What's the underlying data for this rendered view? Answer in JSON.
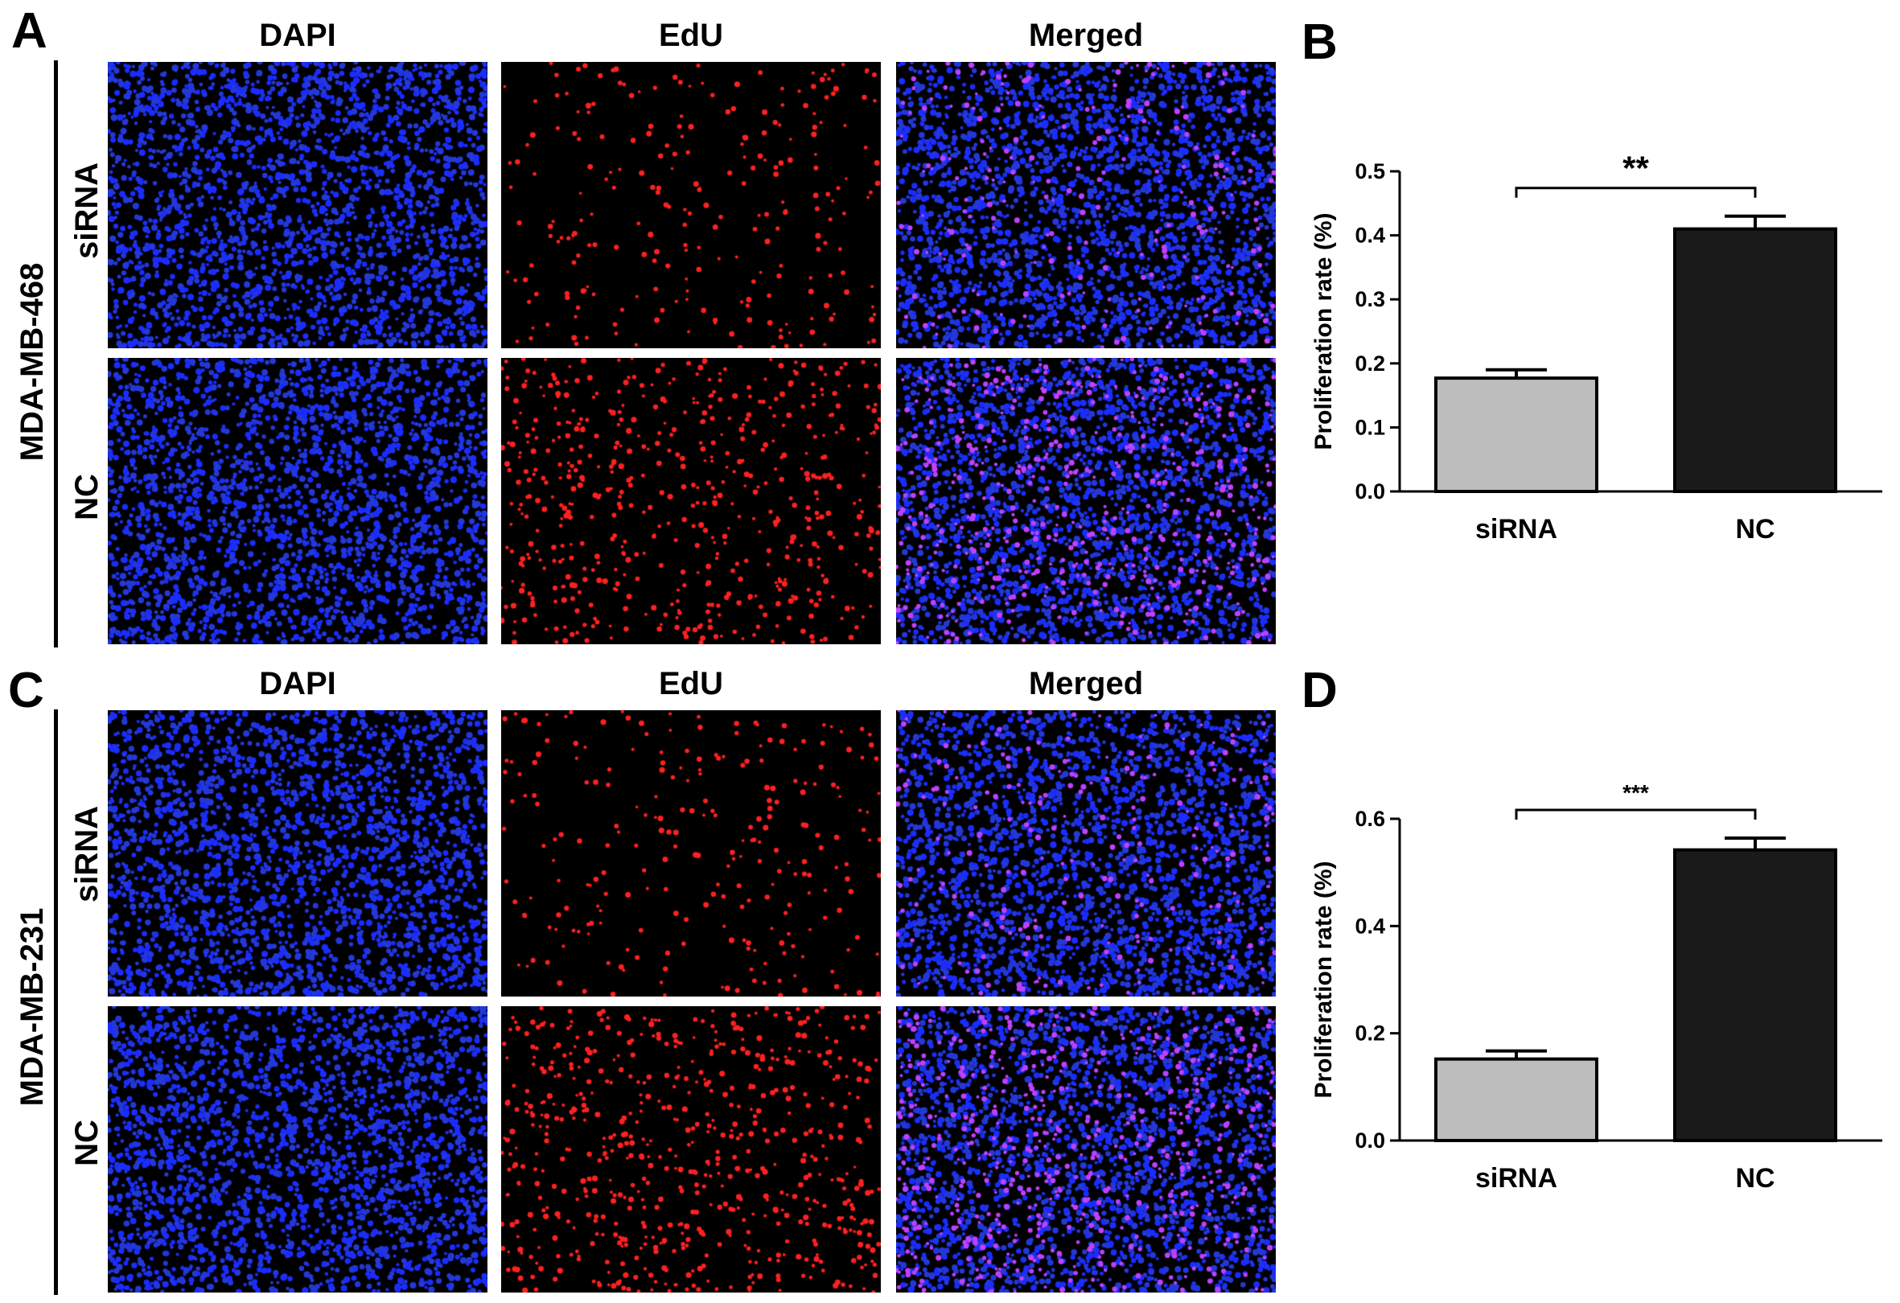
{
  "panels": [
    {
      "letter": "A",
      "cell_line": "MDA-MB-468",
      "columns": [
        "DAPI",
        "EdU",
        "Merged"
      ],
      "rows": [
        "siRNA",
        "NC"
      ]
    },
    {
      "letter": "C",
      "cell_line": "MDA-MB-231",
      "columns": [
        "DAPI",
        "EdU",
        "Merged"
      ],
      "rows": [
        "siRNA",
        "NC"
      ]
    }
  ],
  "chart_letters": {
    "b": "B",
    "d": "D"
  },
  "chart_data": [
    {
      "type": "bar",
      "panel": "B",
      "title": "",
      "xlabel": "",
      "ylabel": "Proliferation rate (%)",
      "categories": [
        "siRNA",
        "NC"
      ],
      "values": [
        0.177,
        0.41
      ],
      "errors": [
        0.013,
        0.02
      ],
      "bar_colors": [
        "#bdbdbd",
        "#1a1a1a"
      ],
      "ylim": [
        0,
        0.5
      ],
      "yticks": [
        "0.0",
        "0.1",
        "0.2",
        "0.3",
        "0.4",
        "0.5"
      ],
      "significance": "**",
      "grid": false
    },
    {
      "type": "bar",
      "panel": "D",
      "title": "",
      "xlabel": "",
      "ylabel": "Proliferation rate (%)",
      "categories": [
        "siRNA",
        "NC"
      ],
      "values": [
        0.152,
        0.542
      ],
      "errors": [
        0.015,
        0.022
      ],
      "bar_colors": [
        "#bdbdbd",
        "#1a1a1a"
      ],
      "ylim": [
        0,
        0.6
      ],
      "yticks": [
        "0.0",
        "0.2",
        "0.4",
        "0.6"
      ],
      "significance": "***",
      "grid": false
    }
  ],
  "colors": {
    "dapi": "#1a2cff",
    "edu": "#ff2020",
    "merged_tint": "#c040ff"
  }
}
